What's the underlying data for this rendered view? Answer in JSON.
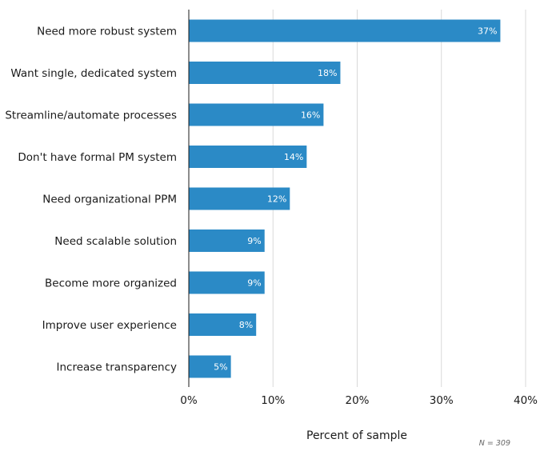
{
  "chart_data": {
    "type": "bar",
    "orientation": "horizontal",
    "categories": [
      "Need more robust system",
      "Want single, dedicated system",
      "Streamline/automate processes",
      "Don't have formal PM system",
      "Need organizational PPM",
      "Need scalable solution",
      "Become more organized",
      "Improve user experience",
      "Increase transparency"
    ],
    "values": [
      37,
      18,
      16,
      14,
      12,
      9,
      9,
      8,
      5
    ],
    "value_labels": [
      "37%",
      "18%",
      "16%",
      "14%",
      "12%",
      "9%",
      "9%",
      "8%",
      "5%"
    ],
    "title": "",
    "xlabel": "Percent of sample",
    "ylabel": "",
    "xlim": [
      0,
      40
    ],
    "xticks": [
      0,
      10,
      20,
      30,
      40
    ],
    "xtick_labels": [
      "0%",
      "10%",
      "20%",
      "30%",
      "40%"
    ],
    "grid": true,
    "bar_color": "#2b8ac6",
    "note": "N = 309"
  }
}
